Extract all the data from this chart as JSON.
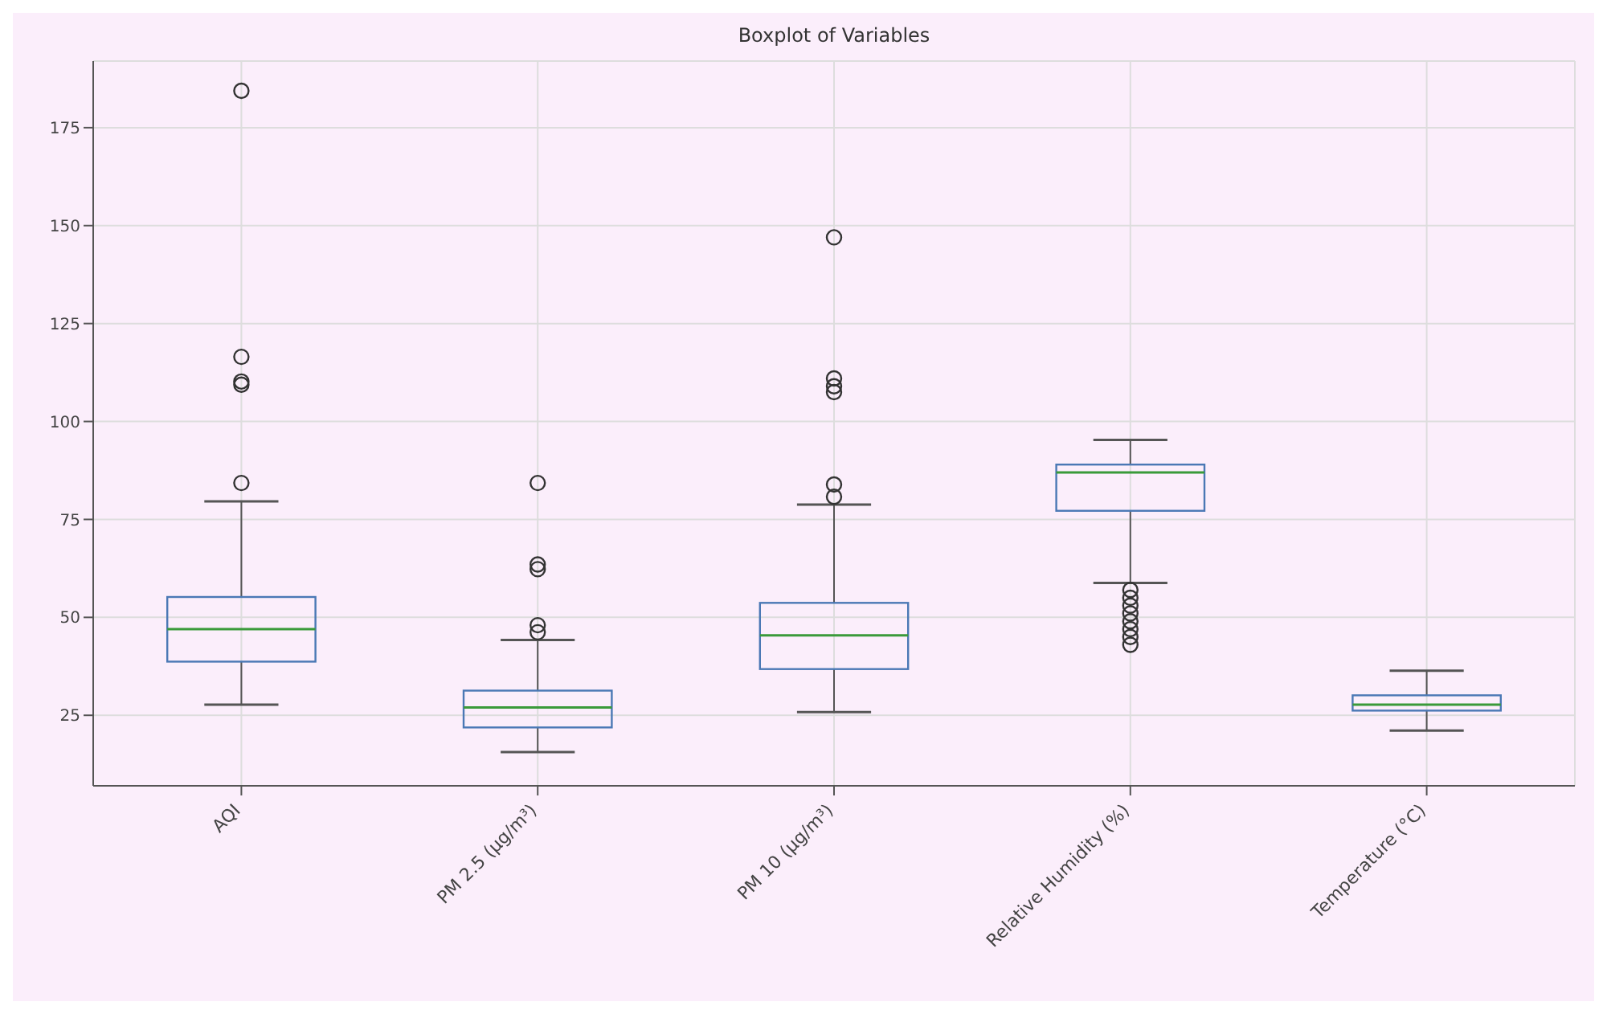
{
  "chart_data": {
    "type": "box",
    "title": "Boxplot of Variables",
    "categories": [
      "AQI",
      "PM 2.5 (µg/m³)",
      "PM 10 (µg/m³)",
      "Relative Humidity (%)",
      "Temperature (°C)"
    ],
    "color": "#4a78b5",
    "boxes": [
      {
        "low": 27.7,
        "q1": 38.7,
        "median": 47,
        "q3": 55.2,
        "high": 79.6,
        "outliers": [
          184.4,
          116.5,
          110.2,
          109.4,
          84.3
        ]
      },
      {
        "low": 15.6,
        "q1": 21.9,
        "median": 27,
        "q3": 31.3,
        "high": 44.2,
        "outliers": [
          84.3,
          63.5,
          62.3,
          48,
          46.2
        ]
      },
      {
        "low": 25.8,
        "q1": 36.8,
        "median": 45.4,
        "q3": 53.7,
        "high": 78.8,
        "outliers": [
          147,
          111,
          109,
          107.5,
          83.9,
          80.8
        ]
      },
      {
        "low": 58.8,
        "q1": 77.2,
        "median": 87,
        "q3": 89,
        "high": 95.3,
        "outliers": [
          57,
          55,
          53,
          51,
          49,
          47,
          45,
          43
        ]
      },
      {
        "low": 21.1,
        "q1": 26.2,
        "median": 27.7,
        "q3": 30.1,
        "high": 36.4
      }
    ],
    "ylim": [
      7,
      192
    ],
    "yticks": [
      25,
      50,
      75,
      100,
      125,
      150,
      175
    ],
    "grid": true,
    "marker": "circle"
  }
}
